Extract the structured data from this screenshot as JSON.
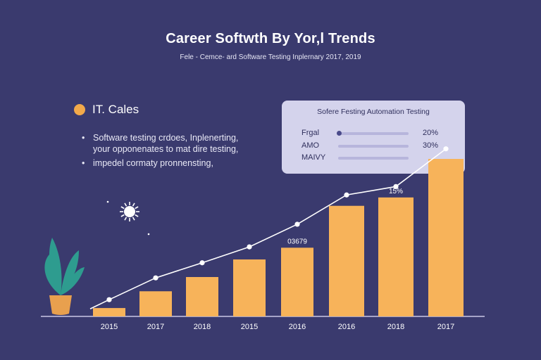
{
  "theme": {
    "background": "#3a3a6e",
    "bar": "#f7b35a",
    "line": "#ffffff",
    "accent": "#f2a94a",
    "leaf": "#2e9c8f",
    "pot": "#e8a04e"
  },
  "header": {
    "title": "Career Softwth By Yor,l Trends",
    "subtitle": "Fele - Cemce- ard Software Testing Inplernary 2017, 2019"
  },
  "section": {
    "label": "IT. Cales",
    "bullets": [
      {
        "lines": [
          "Software testing crdoes, Inplenerting,",
          "your opponenates to mat dire testing,"
        ]
      },
      {
        "lines": [
          "impedel cormaty pronnensting,"
        ]
      }
    ]
  },
  "legend": {
    "title": "Sofere Festing Automation Testing",
    "rows": [
      {
        "name": "Frgal",
        "value": "20%"
      },
      {
        "name": "AMO",
        "value": "30%"
      },
      {
        "name": "MAIVY",
        "value": ""
      }
    ]
  },
  "chart_data": {
    "type": "bar",
    "categories": [
      "2015",
      "2017",
      "2018",
      "2015",
      "2016",
      "2016",
      "2018",
      "2017"
    ],
    "series": [
      {
        "name": "bars",
        "values": [
          1.0,
          3.0,
          4.7,
          6.8,
          8.2,
          13.2,
          14.2,
          18.8
        ]
      },
      {
        "name": "trend",
        "values": [
          2.0,
          4.6,
          6.4,
          8.3,
          11.0,
          14.5,
          15.5,
          20.0
        ]
      }
    ],
    "ylim": [
      0,
      21
    ],
    "annotations": [
      {
        "text": "03679",
        "category_index": 4
      },
      {
        "text": "15%",
        "category_index": 6
      }
    ],
    "title": "",
    "xlabel": "",
    "ylabel": ""
  }
}
